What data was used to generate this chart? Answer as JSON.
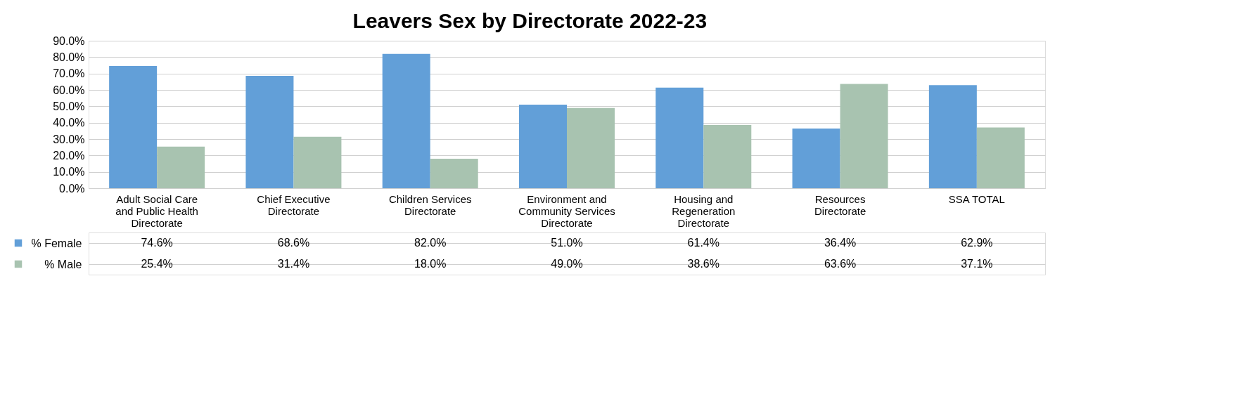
{
  "chart_data": {
    "type": "bar",
    "title": "Leavers Sex by Directorate 2022-23",
    "categories": [
      "Adult Social Care and Public Health Directorate",
      "Chief Executive Directorate",
      "Children Services Directorate",
      "Environment and Community Services Directorate",
      "Housing and Regeneration Directorate",
      "Resources Directorate",
      "SSA TOTAL"
    ],
    "series": [
      {
        "name": "% Female",
        "color": "#629fd8",
        "values": [
          74.6,
          68.6,
          82.0,
          51.0,
          61.4,
          36.4,
          62.9
        ],
        "value_labels": [
          "74.6%",
          "68.6%",
          "82.0%",
          "51.0%",
          "61.4%",
          "36.4%",
          "62.9%"
        ]
      },
      {
        "name": "% Male",
        "color": "#a8c3b0",
        "values": [
          25.4,
          31.4,
          18.0,
          49.0,
          38.6,
          63.6,
          37.1
        ],
        "value_labels": [
          "25.4%",
          "31.4%",
          "18.0%",
          "49.0%",
          "38.6%",
          "63.6%",
          "37.1%"
        ]
      }
    ],
    "ylim": [
      0,
      90
    ],
    "yticks": [
      {
        "value": 0,
        "label": "0.0%"
      },
      {
        "value": 10,
        "label": "10.0%"
      },
      {
        "value": 20,
        "label": "20.0%"
      },
      {
        "value": 30,
        "label": "30.0%"
      },
      {
        "value": 40,
        "label": "40.0%"
      },
      {
        "value": 50,
        "label": "50.0%"
      },
      {
        "value": 60,
        "label": "60.0%"
      },
      {
        "value": 70,
        "label": "70.0%"
      },
      {
        "value": 80,
        "label": "80.0%"
      },
      {
        "value": 90,
        "label": "90.0%"
      }
    ],
    "grid": "y",
    "legend": "bottom"
  }
}
